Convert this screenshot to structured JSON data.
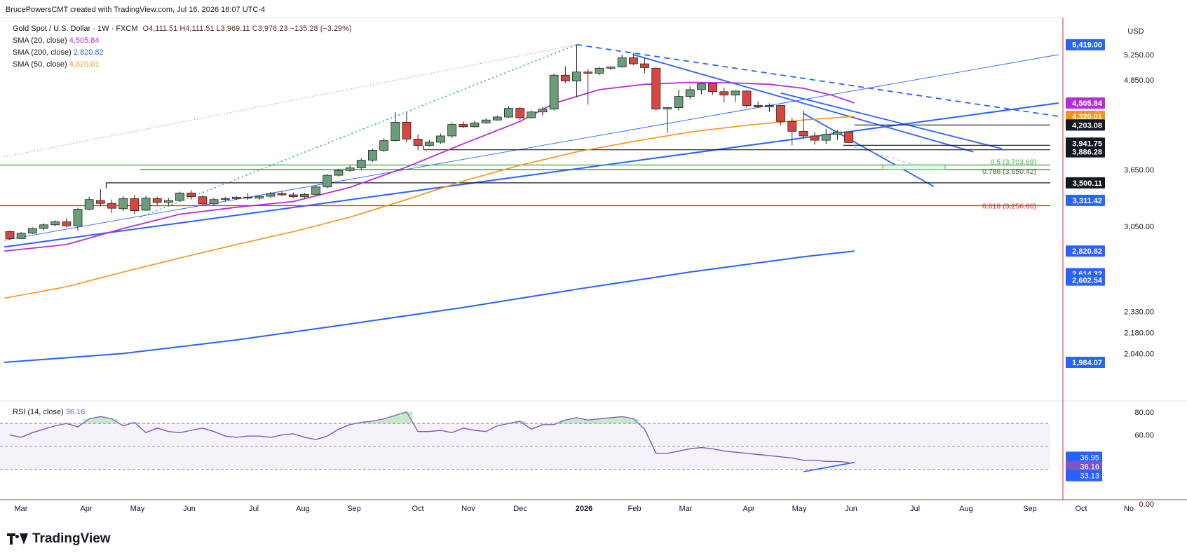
{
  "header": {
    "credit": "BrucePowersCMT created with TradingView.com, Jul 16, 2026 16:07 UTC-4",
    "symbol": "Gold Spot / U.S. Dollar · 1W · FXCM",
    "ohlc": "O4,111.51 H4,111.51 L3,969.11 C3,976.23 −135.28 (−3.29%)",
    "indicators": [
      {
        "label": "SMA (20, close)",
        "value": "4,505.84",
        "color": "#b62dd7"
      },
      {
        "label": "SMA (200, close)",
        "value": "2,820.82",
        "color": "#2962ff"
      },
      {
        "label": "SMA (50, close)",
        "value": "4,320.01",
        "color": "#f7921a"
      }
    ]
  },
  "brand": {
    "name": "TradingView"
  },
  "colors": {
    "up": "#6a9e7b",
    "down": "#d94540",
    "outline": "#222222",
    "sma20": "#b62dd7",
    "sma50": "#f7921a",
    "sma200": "#2962ff",
    "trend": "#2962ff",
    "fib_green": "#4caf50",
    "fib_red": "#d32f2f"
  },
  "chart_data": {
    "type": "candlestick",
    "currency": "USD",
    "price_scale": {
      "ticks": [
        "5,250.00",
        "4,850.00",
        "3,650.00",
        "3,050.00",
        "2,330.00",
        "2,180.00",
        "2,040.00"
      ]
    },
    "time_axis": [
      "Mar",
      "Apr",
      "May",
      "Jun",
      "Jul",
      "Aug",
      "Sep",
      "Oct",
      "Nov",
      "Dec",
      "2026",
      "Feb",
      "Mar",
      "Apr",
      "May",
      "Jun",
      "Jul",
      "Aug",
      "Sep",
      "Oct",
      "No"
    ],
    "price_labels": [
      {
        "text": "5,419.00",
        "value": 5419.0,
        "style": "blue"
      },
      {
        "text": "4,505.84",
        "value": 4505.84,
        "style": "purple"
      },
      {
        "text": "4,320.01",
        "value": 4320.01,
        "style": "orange"
      },
      {
        "text": "4,203.08",
        "value": 4203.08,
        "style": "black"
      },
      {
        "text": "3,941.75",
        "value": 3941.75,
        "style": "black"
      },
      {
        "text": "3,886.28",
        "value": 3886.28,
        "style": "black"
      },
      {
        "text": "3,500.11",
        "value": 3500.11,
        "style": "black"
      },
      {
        "text": "3,311.42",
        "value": 3311.42,
        "style": "blue"
      },
      {
        "text": "2,820.82",
        "value": 2820.82,
        "style": "blue"
      },
      {
        "text": "2,614.32",
        "value": 2614.32,
        "style": "blue"
      },
      {
        "text": "2,602.54",
        "value": 2602.54,
        "style": "blue"
      },
      {
        "text": "1,984.07",
        "value": 1984.07,
        "style": "blue"
      }
    ],
    "fib_levels": [
      {
        "text": "0.5 (3,703.69)",
        "value": 3703.69,
        "color": "#4caf50"
      },
      {
        "text": "0.786 (3,650.42)",
        "value": 3650.42,
        "color": "#3c6e2f"
      },
      {
        "text": "0.618 (3,256.86)",
        "value": 3256.86,
        "color": "#d32f2f"
      }
    ],
    "candles": [
      [
        3000,
        3010,
        2920,
        2935
      ],
      [
        2935,
        2995,
        2930,
        2985
      ],
      [
        2985,
        3040,
        2975,
        3030
      ],
      [
        3030,
        3080,
        3010,
        3065
      ],
      [
        3065,
        3110,
        3050,
        3095
      ],
      [
        3095,
        3130,
        3040,
        3055
      ],
      [
        3055,
        3235,
        3010,
        3220
      ],
      [
        3220,
        3350,
        3210,
        3320
      ],
      [
        3310,
        3430,
        3250,
        3280
      ],
      [
        3280,
        3320,
        3180,
        3230
      ],
      [
        3225,
        3355,
        3200,
        3330
      ],
      [
        3330,
        3370,
        3170,
        3205
      ],
      [
        3210,
        3360,
        3200,
        3335
      ],
      [
        3330,
        3350,
        3260,
        3290
      ],
      [
        3290,
        3335,
        3260,
        3310
      ],
      [
        3310,
        3405,
        3300,
        3390
      ],
      [
        3390,
        3420,
        3320,
        3350
      ],
      [
        3350,
        3365,
        3260,
        3275
      ],
      [
        3275,
        3340,
        3260,
        3320
      ],
      [
        3320,
        3350,
        3300,
        3330
      ],
      [
        3330,
        3355,
        3315,
        3345
      ],
      [
        3345,
        3390,
        3315,
        3335
      ],
      [
        3335,
        3370,
        3315,
        3355
      ],
      [
        3355,
        3400,
        3340,
        3385
      ],
      [
        3385,
        3410,
        3355,
        3370
      ],
      [
        3370,
        3395,
        3335,
        3350
      ],
      [
        3350,
        3390,
        3330,
        3375
      ],
      [
        3375,
        3470,
        3365,
        3455
      ],
      [
        3455,
        3600,
        3440,
        3585
      ],
      [
        3585,
        3660,
        3570,
        3640
      ],
      [
        3640,
        3700,
        3620,
        3670
      ],
      [
        3670,
        3785,
        3650,
        3760
      ],
      [
        3760,
        3900,
        3740,
        3880
      ],
      [
        3880,
        4030,
        3860,
        4000
      ],
      [
        4000,
        4380,
        3990,
        4240
      ],
      [
        4240,
        4380,
        3980,
        4020
      ],
      [
        4020,
        4080,
        3880,
        3940
      ],
      [
        3940,
        4010,
        3930,
        3980
      ],
      [
        3980,
        4090,
        3960,
        4060
      ],
      [
        4060,
        4240,
        4030,
        4210
      ],
      [
        4210,
        4250,
        4160,
        4180
      ],
      [
        4180,
        4260,
        4170,
        4230
      ],
      [
        4230,
        4290,
        4220,
        4270
      ],
      [
        4270,
        4330,
        4260,
        4310
      ],
      [
        4310,
        4460,
        4300,
        4430
      ],
      [
        4430,
        4450,
        4270,
        4300
      ],
      [
        4300,
        4400,
        4290,
        4380
      ],
      [
        4380,
        4450,
        4330,
        4420
      ],
      [
        4420,
        4950,
        4400,
        4920
      ],
      [
        4920,
        5060,
        4800,
        4830
      ],
      [
        4830,
        5419,
        4590,
        4970
      ],
      [
        4970,
        5020,
        4480,
        4950
      ],
      [
        4950,
        5050,
        4920,
        5030
      ],
      [
        5030,
        5060,
        5000,
        5050
      ],
      [
        5050,
        5250,
        5040,
        5200
      ],
      [
        5200,
        5280,
        5080,
        5100
      ],
      [
        5100,
        5200,
        4950,
        5040
      ],
      [
        5030,
        5050,
        4400,
        4420
      ],
      [
        4420,
        4450,
        4100,
        4440
      ],
      [
        4440,
        4700,
        4400,
        4600
      ],
      [
        4600,
        4750,
        4560,
        4700
      ],
      [
        4700,
        4800,
        4630,
        4790
      ],
      [
        4790,
        4800,
        4620,
        4670
      ],
      [
        4670,
        4730,
        4510,
        4620
      ],
      [
        4620,
        4690,
        4520,
        4680
      ],
      [
        4680,
        4690,
        4440,
        4470
      ],
      [
        4470,
        4530,
        4440,
        4450
      ],
      [
        4450,
        4500,
        4380,
        4470
      ],
      [
        4470,
        4480,
        4200,
        4250
      ],
      [
        4250,
        4300,
        3940,
        4120
      ],
      [
        4120,
        4400,
        4030,
        4060
      ],
      [
        4060,
        4110,
        3950,
        4005
      ],
      [
        4005,
        4150,
        3960,
        4080
      ],
      [
        4080,
        4140,
        4010,
        4111.51
      ],
      [
        4111.51,
        4111.51,
        3969.11,
        3976.23
      ]
    ]
  },
  "rsi": {
    "label": "RSI (14, close)",
    "value": "36.16",
    "scale": [
      "80.00",
      "60.00",
      "0.00"
    ],
    "levels": [
      70,
      50,
      30
    ],
    "markers": [
      {
        "text": "36.95",
        "value": 36.95
      },
      {
        "text": "36.16",
        "value": 36.16
      },
      {
        "text": "33.13",
        "value": 33.13
      }
    ],
    "values": [
      60,
      58,
      62,
      65,
      68,
      70,
      67,
      74,
      76,
      74,
      68,
      71,
      62,
      66,
      63,
      62,
      64,
      66,
      63,
      59,
      58,
      59,
      59,
      58,
      60,
      61,
      58,
      56,
      59,
      65,
      69,
      71,
      72,
      74,
      77,
      80,
      63,
      63,
      64,
      62,
      66,
      64,
      63,
      68,
      70,
      72,
      65,
      69,
      69,
      73,
      75,
      73,
      74,
      75,
      76,
      74,
      65,
      44,
      44,
      46,
      48,
      49,
      48,
      46,
      45,
      44,
      43,
      42,
      41,
      40,
      38,
      38,
      37,
      36.95,
      36.16
    ]
  }
}
